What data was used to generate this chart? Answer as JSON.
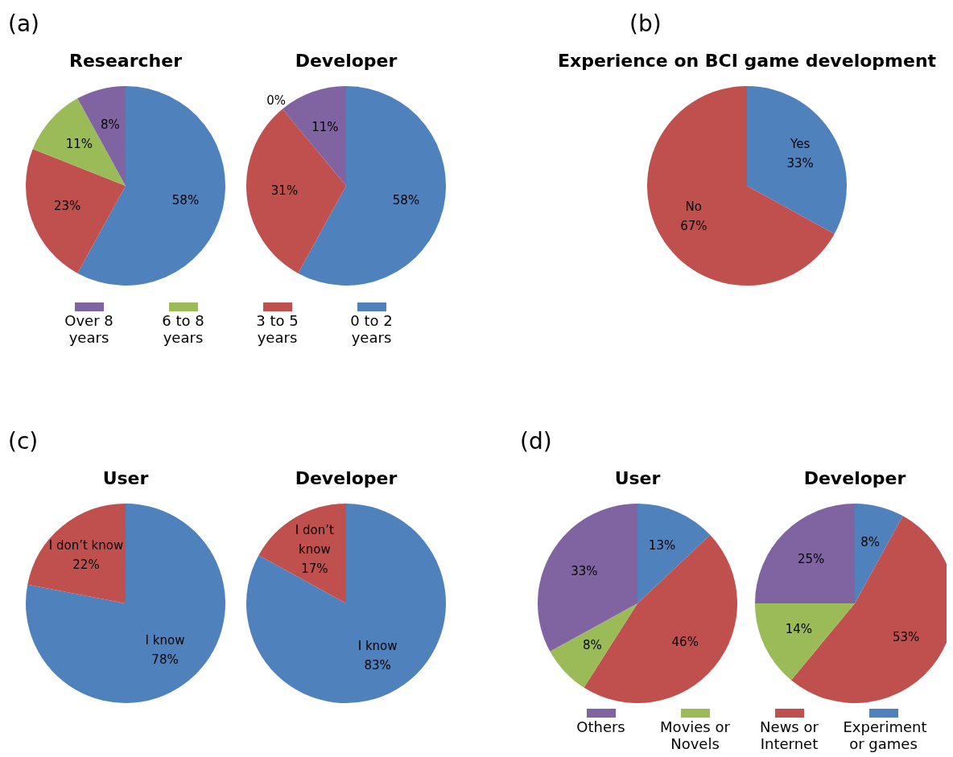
{
  "chart_data": [
    {
      "type": "pie",
      "title": "Researcher",
      "annotations": [
        "(a)"
      ],
      "categories": [
        "0 to 2 years",
        "3 to 5 years",
        "6 to 8 years",
        "Over 8 years"
      ],
      "values": [
        58,
        23,
        11,
        8
      ],
      "colors": [
        "#4f81bd",
        "#c0504d",
        "#9bbb59",
        "#8064a2"
      ],
      "value_labels": [
        "58%",
        "23%",
        "11%",
        "8%"
      ],
      "legend": "bottom"
    },
    {
      "type": "pie",
      "title": "Developer",
      "categories": [
        null,
        null,
        null,
        null
      ],
      "values": [
        58,
        31,
        0,
        11
      ],
      "colors": [
        "#4f81bd",
        "#c0504d",
        "#9bbb59",
        "#8064a2"
      ],
      "value_labels": [
        "58%",
        "31%",
        "0%",
        "11%"
      ],
      "legend": false
    },
    {
      "type": "pie",
      "title": "Experience on BCI game development",
      "annotations": [
        "(b)"
      ],
      "categories": [
        "Yes",
        "No"
      ],
      "values": [
        33,
        67
      ],
      "colors": [
        "#4f81bd",
        "#c0504d"
      ],
      "value_labels": [
        "33%",
        "67%"
      ],
      "legend": false
    },
    {
      "type": "pie",
      "title": "User",
      "annotations": [
        "(c)"
      ],
      "categories": [
        "I know",
        "I don’t know"
      ],
      "values": [
        78,
        22
      ],
      "colors": [
        "#4f81bd",
        "#c0504d"
      ],
      "value_labels": [
        "78%",
        "22%"
      ],
      "legend": false
    },
    {
      "type": "pie",
      "title": "Developer",
      "categories": [
        "I know",
        "I don’t know"
      ],
      "values": [
        83,
        17
      ],
      "colors": [
        "#4f81bd",
        "#c0504d"
      ],
      "value_labels": [
        "83%",
        "17%"
      ],
      "legend": false
    },
    {
      "type": "pie",
      "title": "User",
      "annotations": [
        "(d)"
      ],
      "categories": [
        "Experiment or games",
        "News or Internet",
        "Movies or Novels",
        "Others"
      ],
      "values": [
        13,
        46,
        8,
        33
      ],
      "colors": [
        "#4f81bd",
        "#c0504d",
        "#9bbb59",
        "#8064a2"
      ],
      "value_labels": [
        "13%",
        "46%",
        "8%",
        "33%"
      ],
      "legend": "bottom"
    },
    {
      "type": "pie",
      "title": "Developer",
      "categories": [
        null,
        null,
        null,
        null
      ],
      "values": [
        8,
        53,
        14,
        25
      ],
      "colors": [
        "#4f81bd",
        "#c0504d",
        "#9bbb59",
        "#8064a2"
      ],
      "value_labels": [
        "8%",
        "53%",
        "14%",
        "25%"
      ],
      "legend": false
    }
  ]
}
